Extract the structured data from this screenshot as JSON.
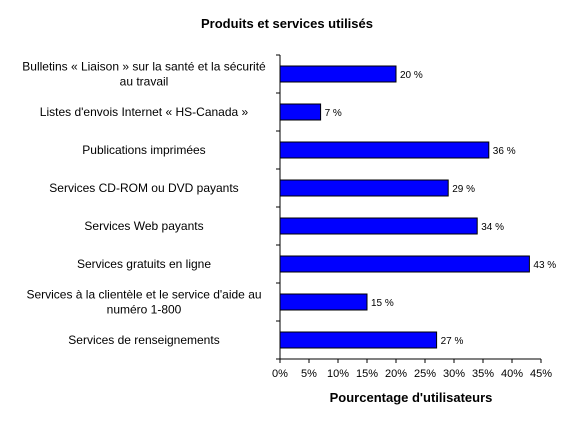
{
  "chart_data": {
    "type": "bar",
    "orientation": "horizontal",
    "title": "Produits et services utilisés",
    "xlabel": "Pourcentage d'utilisateurs",
    "ylabel": "",
    "categories": [
      [
        "Bulletins « Liaison » sur la santé et la sécurité",
        "au travail"
      ],
      [
        "Listes d'envois Internet « HS-Canada »"
      ],
      [
        "Publications imprimées"
      ],
      [
        "Services CD-ROM ou DVD payants"
      ],
      [
        "Services Web payants"
      ],
      [
        "Services gratuits en ligne"
      ],
      [
        "Services à la clientèle et le service d'aide au",
        "numéro 1-800"
      ],
      [
        "Services de renseignements"
      ]
    ],
    "values": [
      20,
      7,
      36,
      29,
      34,
      43,
      15,
      27
    ],
    "data_labels": [
      "20 %",
      "7 %",
      "36 %",
      "29 %",
      "34 %",
      "43 %",
      "15 %",
      "27 %"
    ],
    "xlim": [
      0,
      45
    ],
    "x_ticks": [
      0,
      5,
      10,
      15,
      20,
      25,
      30,
      35,
      40,
      45
    ],
    "x_tick_labels": [
      "0%",
      "5%",
      "10%",
      "15%",
      "20%",
      "25%",
      "30%",
      "35%",
      "40%",
      "45%"
    ],
    "grid": false,
    "legend": "none",
    "bar_color": "#0000FF",
    "bar_edge_color": "#000000"
  }
}
